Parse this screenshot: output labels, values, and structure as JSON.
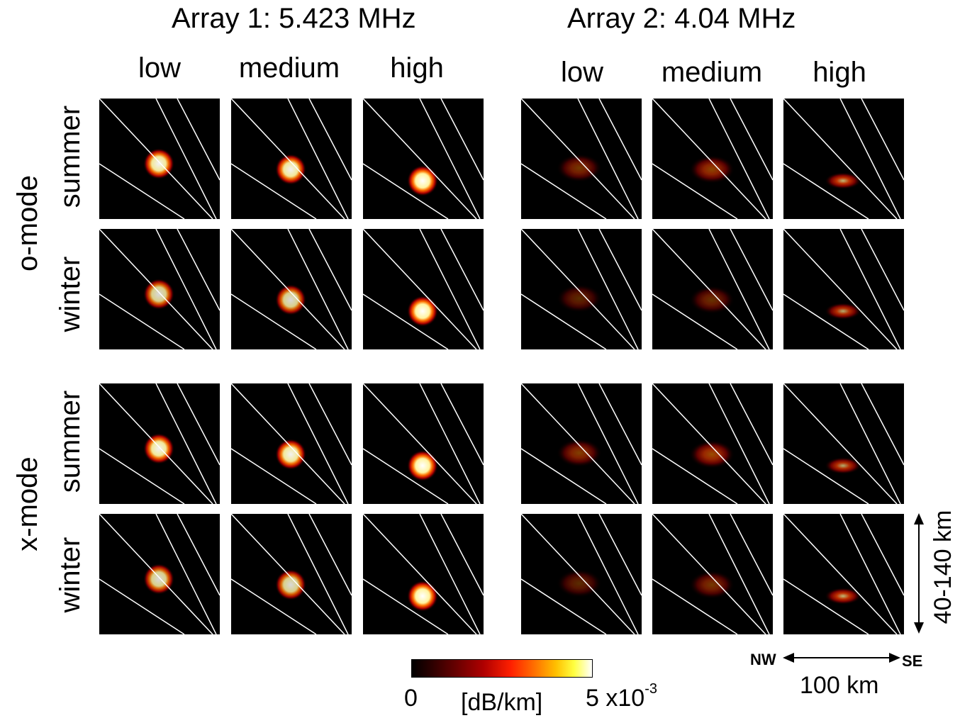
{
  "arrays": [
    {
      "title": "Array 1: 5.423 MHz",
      "columns": [
        "low",
        "medium",
        "high"
      ]
    },
    {
      "title": "Array 2: 4.04 MHz",
      "columns": [
        "low",
        "medium",
        "high"
      ]
    }
  ],
  "modes": [
    {
      "label": "o-mode",
      "seasons": [
        "summer",
        "winter"
      ]
    },
    {
      "label": "x-mode",
      "seasons": [
        "summer",
        "winter"
      ]
    }
  ],
  "panels": [
    [
      [
        0.95,
        0.95,
        1.0
      ],
      [
        0.45,
        0.55,
        0.75
      ]
    ],
    [
      [
        0.85,
        0.85,
        1.0
      ],
      [
        0.35,
        0.4,
        0.7
      ]
    ],
    [
      [
        0.95,
        0.95,
        1.0
      ],
      [
        0.5,
        0.6,
        0.7
      ]
    ],
    [
      [
        0.85,
        0.85,
        1.0
      ],
      [
        0.35,
        0.45,
        0.75
      ]
    ]
  ],
  "colorbar": {
    "min_label": "0",
    "unit_label": "[dB/km]",
    "max_mantissa": "5 x10",
    "max_exponent": "-3",
    "colors": [
      "#000000",
      "#6a0000",
      "#ff2000",
      "#ffc000",
      "#ffffff"
    ]
  },
  "scale": {
    "vertical_label": "40-140 km",
    "horizontal_label": "100 km",
    "left_dir": "NW",
    "right_dir": "SE"
  }
}
